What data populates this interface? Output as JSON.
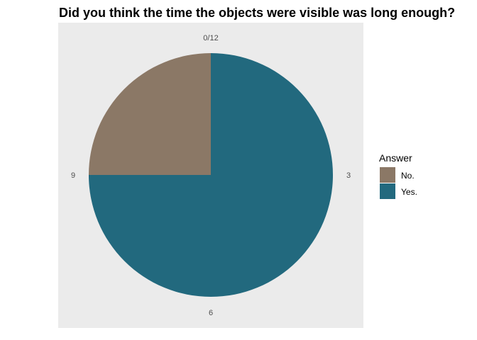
{
  "chart_data": {
    "type": "pie",
    "title": "Did you think the time the objects were visible was long enough?",
    "scale_max": 12,
    "start_tick_label": "0/12",
    "tick_labels": [
      {
        "value": 0,
        "label": "0/12"
      },
      {
        "value": 3,
        "label": "3"
      },
      {
        "value": 6,
        "label": "6"
      },
      {
        "value": 9,
        "label": "9"
      }
    ],
    "slices": [
      {
        "label": "Yes.",
        "value": 9,
        "color": "#22697e"
      },
      {
        "label": "No.",
        "value": 3,
        "color": "#8b7866"
      }
    ],
    "legend": {
      "title": "Answer",
      "position": "right",
      "entries": [
        {
          "label": "No.",
          "color": "#8b7866"
        },
        {
          "label": "Yes.",
          "color": "#22697e"
        }
      ]
    },
    "panel_background": "#ebebeb",
    "grid": false
  }
}
